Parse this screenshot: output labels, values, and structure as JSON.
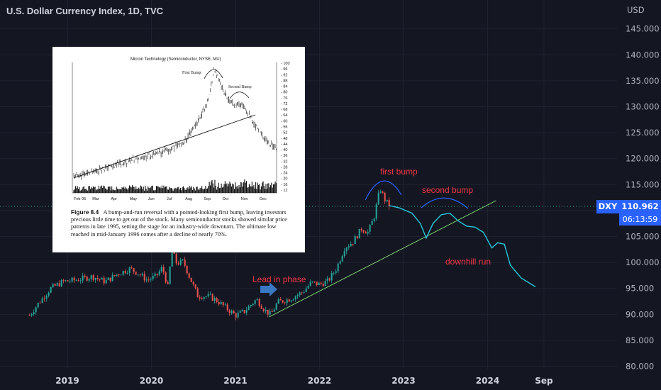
{
  "header": {
    "title": "U.S. Dollar Currency Index, 1D, TVC"
  },
  "price_tag": {
    "symbol": "DXY",
    "price": "110.962",
    "countdown": "06:13:59"
  },
  "annotations": {
    "first_bump": "first bump",
    "second_bump": "second bump",
    "lead_in": "Lead in phase",
    "downhill": "downhill run"
  },
  "inset": {
    "title": "Micron Technology (Semiconductor, NYSE, MU)",
    "first_bump": "First Bump",
    "second_bump": "Second Bump",
    "x_ticks": [
      "Feb 95",
      "Mar",
      "Apr",
      "May",
      "Jun",
      "Jul",
      "Aug",
      "Sep",
      "Oct",
      "Nov",
      "Dec"
    ],
    "y_ticks": [
      "100",
      "96",
      "92",
      "88",
      "84",
      "80",
      "76",
      "72",
      "68",
      "64",
      "60",
      "56",
      "52",
      "48",
      "44",
      "40",
      "36",
      "32",
      "28",
      "24",
      "20",
      "16",
      "12"
    ],
    "caption_label": "Figure 8.4",
    "caption_text": "A bump-and-run reversal with a pointed-looking first bump, leaving investors precious little time to get out of the stock. Many semiconductor stocks showed similar price patterns in late 1995, setting the stage for an industry-wide downturn. The ultimate low reached in mid-January 1996 comes after a decline of nearly 70%."
  },
  "colors": {
    "background": "#141722",
    "candle_up": "#26a69a",
    "candle_down": "#ef5350",
    "trendline": "#7ccf6f",
    "projection": "#26c6da",
    "annotation_text": "#f23645",
    "arrow": "#2962ff",
    "price_tag": "#2962ff"
  },
  "chart_data": {
    "type": "candlestick",
    "title": "U.S. Dollar Currency Index, 1D, TVC",
    "y_unit": "USD",
    "ylim": [
      80,
      148
    ],
    "y_ticks": [
      "145.000",
      "140.000",
      "135.000",
      "130.000",
      "125.000",
      "120.000",
      "115.000",
      "110.000",
      "105.000",
      "100.000",
      "95.000",
      "90.000",
      "85.000",
      "80.000"
    ],
    "x_ticks": [
      "2019",
      "2020",
      "2021",
      "2022",
      "2023",
      "2024",
      "Sep"
    ],
    "current_price": 110.962,
    "price_path": [
      {
        "t": 2018.55,
        "v": 89.8
      },
      {
        "t": 2018.65,
        "v": 92.0
      },
      {
        "t": 2018.8,
        "v": 95.0
      },
      {
        "t": 2018.95,
        "v": 96.3
      },
      {
        "t": 2019.1,
        "v": 96.6
      },
      {
        "t": 2019.3,
        "v": 97.3
      },
      {
        "t": 2019.45,
        "v": 96.3
      },
      {
        "t": 2019.6,
        "v": 97.8
      },
      {
        "t": 2019.75,
        "v": 98.8
      },
      {
        "t": 2019.85,
        "v": 97.8
      },
      {
        "t": 2019.95,
        "v": 96.6
      },
      {
        "t": 2020.05,
        "v": 97.3
      },
      {
        "t": 2020.13,
        "v": 99.0
      },
      {
        "t": 2020.2,
        "v": 95.0
      },
      {
        "t": 2020.24,
        "v": 102.6
      },
      {
        "t": 2020.3,
        "v": 99.8
      },
      {
        "t": 2020.38,
        "v": 100.2
      },
      {
        "t": 2020.45,
        "v": 97.3
      },
      {
        "t": 2020.55,
        "v": 93.6
      },
      {
        "t": 2020.7,
        "v": 93.4
      },
      {
        "t": 2020.8,
        "v": 92.4
      },
      {
        "t": 2020.92,
        "v": 90.8
      },
      {
        "t": 2021.0,
        "v": 89.8
      },
      {
        "t": 2021.1,
        "v": 90.5
      },
      {
        "t": 2021.25,
        "v": 92.9
      },
      {
        "t": 2021.35,
        "v": 90.8
      },
      {
        "t": 2021.42,
        "v": 89.9
      },
      {
        "t": 2021.5,
        "v": 92.3
      },
      {
        "t": 2021.65,
        "v": 93.0
      },
      {
        "t": 2021.8,
        "v": 94.3
      },
      {
        "t": 2021.9,
        "v": 96.1
      },
      {
        "t": 2022.0,
        "v": 95.8
      },
      {
        "t": 2022.1,
        "v": 96.4
      },
      {
        "t": 2022.2,
        "v": 98.8
      },
      {
        "t": 2022.3,
        "v": 102.9
      },
      {
        "t": 2022.4,
        "v": 104.0
      },
      {
        "t": 2022.5,
        "v": 106.5
      },
      {
        "t": 2022.58,
        "v": 105.8
      },
      {
        "t": 2022.65,
        "v": 108.8
      },
      {
        "t": 2022.72,
        "v": 114.3
      },
      {
        "t": 2022.78,
        "v": 112.0
      },
      {
        "t": 2022.83,
        "v": 110.96
      }
    ],
    "trendline": {
      "from": {
        "t": 2021.4,
        "v": 89.5
      },
      "to": {
        "t": 2024.1,
        "v": 111.9
      }
    },
    "projection_path": [
      {
        "t": 2022.83,
        "v": 110.96
      },
      {
        "t": 2022.95,
        "v": 110.5
      },
      {
        "t": 2023.1,
        "v": 109.5
      },
      {
        "t": 2023.2,
        "v": 107.5
      },
      {
        "t": 2023.27,
        "v": 104.7
      },
      {
        "t": 2023.35,
        "v": 107.5
      },
      {
        "t": 2023.45,
        "v": 109.2
      },
      {
        "t": 2023.55,
        "v": 109.5
      },
      {
        "t": 2023.65,
        "v": 108.0
      },
      {
        "t": 2023.75,
        "v": 107.0
      },
      {
        "t": 2023.85,
        "v": 106.8
      },
      {
        "t": 2023.95,
        "v": 105.8
      },
      {
        "t": 2024.05,
        "v": 102.8
      },
      {
        "t": 2024.12,
        "v": 103.8
      },
      {
        "t": 2024.2,
        "v": 103.5
      },
      {
        "t": 2024.27,
        "v": 99.5
      },
      {
        "t": 2024.4,
        "v": 97.0
      },
      {
        "t": 2024.57,
        "v": 95.3
      }
    ]
  }
}
